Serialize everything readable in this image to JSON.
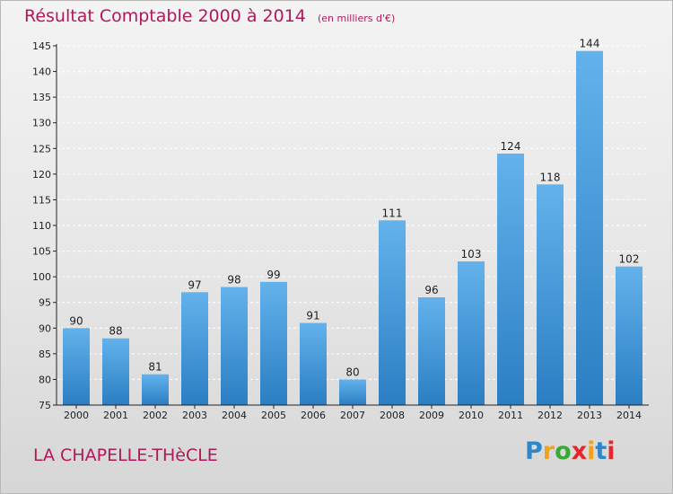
{
  "title": "Résultat Comptable 2000 à 2014",
  "unit": "(en milliers d'€)",
  "location": "LA CHAPELLE-THèCLE",
  "brand": {
    "letters": [
      "P",
      "r",
      "o",
      "x",
      "i",
      "t",
      "i"
    ],
    "colors": [
      "#2f86c9",
      "#f0a21a",
      "#39a935",
      "#e2282d",
      "#f0a21a",
      "#2f86c9",
      "#e2282d"
    ]
  },
  "colors": {
    "bar_light": "#63b2ec",
    "bar_dark": "#2a7ec2",
    "title": "#b0185a",
    "axis": "#222222"
  },
  "chart_data": {
    "type": "bar",
    "title": "Résultat Comptable 2000 à 2014",
    "xlabel": "",
    "ylabel": "",
    "categories": [
      "2000",
      "2001",
      "2002",
      "2003",
      "2004",
      "2005",
      "2006",
      "2007",
      "2008",
      "2009",
      "2010",
      "2011",
      "2012",
      "2013",
      "2014"
    ],
    "values": [
      90,
      88,
      81,
      97,
      98,
      99,
      91,
      80,
      111,
      96,
      103,
      124,
      118,
      144,
      102
    ],
    "ylim": [
      75,
      145
    ],
    "yticks": [
      75,
      80,
      85,
      90,
      95,
      100,
      105,
      110,
      115,
      120,
      125,
      130,
      135,
      140,
      145
    ],
    "grid": true,
    "legend": "none"
  }
}
